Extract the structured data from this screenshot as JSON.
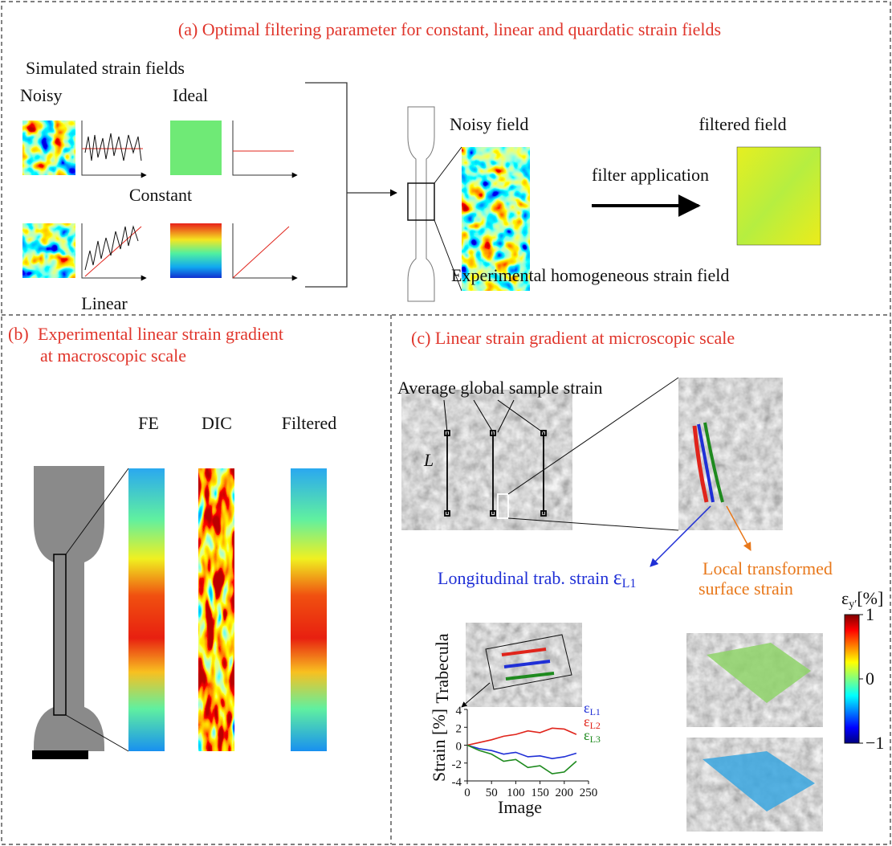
{
  "panel_a": {
    "title": "(a) Optimal filtering parameter for constant, linear and quardatic strain fields",
    "simulated": "Simulated strain fields",
    "noisy": "Noisy",
    "ideal": "Ideal",
    "constant": "Constant",
    "linear": "Linear",
    "noisy_field": "Noisy field",
    "filtered_field": "filtered field",
    "filter_application": "filter application",
    "experimental": "Experimental homogeneous strain field"
  },
  "panel_b": {
    "title_1": "(b)",
    "title_2": "Experimental linear strain gradient",
    "title_3": "at macroscopic scale",
    "fe": "FE",
    "dic": "DIC",
    "filtered": "Filtered"
  },
  "panel_c": {
    "title": "(c) Linear strain gradient at microscopic scale",
    "average": "Average global sample strain",
    "l": "L",
    "longitudinal": "Longitudinal trab. strain ",
    "longitudinal_symbol": "ε",
    "longitudinal_sub": "L1",
    "local_1": "Local transformed",
    "local_2": "surface strain",
    "trabecula": "Trabecula",
    "plot": {
      "ylabel": "Strain [%]",
      "xlabel": "Image",
      "xlim": [
        0,
        250
      ],
      "ylim": [
        -4,
        4
      ],
      "xticks": [
        0,
        50,
        100,
        150,
        200,
        250
      ],
      "yticks": [
        4,
        2,
        0,
        -2,
        -4
      ],
      "x": [
        0,
        25,
        50,
        75,
        100,
        125,
        150,
        175,
        200,
        225
      ],
      "series": [
        {
          "name": "ε",
          "sub": "L1",
          "color": "#1f2fd6",
          "values": [
            0,
            -0.4,
            -0.6,
            -1.0,
            -0.8,
            -1.3,
            -1.2,
            -1.5,
            -1.3,
            -0.9
          ]
        },
        {
          "name": "ε",
          "sub": "L2",
          "color": "#e0241b",
          "values": [
            0,
            0.3,
            0.6,
            1.0,
            1.2,
            1.6,
            1.4,
            1.9,
            1.8,
            1.2
          ]
        },
        {
          "name": "ε",
          "sub": "L3",
          "color": "#1e8a1e",
          "values": [
            0,
            -0.6,
            -1.0,
            -1.8,
            -1.6,
            -2.5,
            -2.3,
            -3.2,
            -3.0,
            -1.8
          ]
        }
      ]
    },
    "colorbar": {
      "symbol": "ε",
      "sub": "y′",
      "unit": "[%]",
      "ticks": [
        {
          "value": 1,
          "label": "1"
        },
        {
          "value": 0,
          "label": "0"
        },
        {
          "value": -1,
          "label": "−1"
        }
      ],
      "lim": [
        -1,
        1
      ]
    }
  }
}
